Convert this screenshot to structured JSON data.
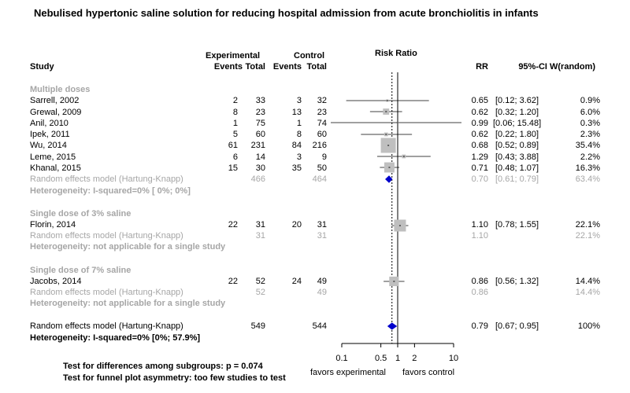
{
  "title": "Nebulised hypertonic saline solution for reducing hospital admission from acute bronchiolitis in infants",
  "headers": {
    "experimental": "Experimental",
    "control": "Control",
    "study": "Study",
    "events_e": "Events",
    "total_e": "Total",
    "events_c": "Events",
    "total_c": "Total",
    "risk_ratio": "Risk Ratio",
    "rr": "RR",
    "ci": "95%-CI",
    "weight": "W(random)"
  },
  "colors": {
    "overall_diamond": "#0000cc",
    "subgroup_diamond": "#0000cc",
    "box": "#bfbfbf",
    "muted_text": "#a6a6a6"
  },
  "chart_data": {
    "type": "forest",
    "measure": "Risk Ratio",
    "x_scale": "log",
    "xlim": [
      0.1,
      10
    ],
    "ticks": [
      {
        "value": 0.1,
        "label": "0.1"
      },
      {
        "value": 0.5,
        "label": "0.5"
      },
      {
        "value": 1,
        "label": "1"
      },
      {
        "value": 2,
        "label": "2"
      },
      {
        "value": 10,
        "label": "10"
      }
    ],
    "null_value": 1,
    "pooled_reference_value": 0.79,
    "favors_left": "favors experimental",
    "favors_right": "favors control",
    "subgroups": [
      {
        "label": "Multiple doses",
        "studies": [
          {
            "study": "Sarrell, 2002",
            "ev_e": "2",
            "n_e": "33",
            "ev_c": "3",
            "n_c": "32",
            "rr": 0.65,
            "lo": 0.12,
            "hi": 3.62,
            "rr_txt": "0.65",
            "ci_txt": "[0.12;  3.62]",
            "w_txt": "0.9%",
            "w": 0.9
          },
          {
            "study": "Grewal, 2009",
            "ev_e": "8",
            "n_e": "23",
            "ev_c": "13",
            "n_c": "23",
            "rr": 0.62,
            "lo": 0.32,
            "hi": 1.2,
            "rr_txt": "0.62",
            "ci_txt": "[0.32;  1.20]",
            "w_txt": "6.0%",
            "w": 6.0
          },
          {
            "study": "Anil, 2010",
            "ev_e": "1",
            "n_e": "75",
            "ev_c": "1",
            "n_c": "74",
            "rr": 0.99,
            "lo": 0.06,
            "hi": 15.48,
            "rr_txt": "0.99",
            "ci_txt": "[0.06; 15.48]",
            "w_txt": "0.3%",
            "w": 0.3
          },
          {
            "study": "Ipek, 2011",
            "ev_e": "5",
            "n_e": "60",
            "ev_c": "8",
            "n_c": "60",
            "rr": 0.62,
            "lo": 0.22,
            "hi": 1.8,
            "rr_txt": "0.62",
            "ci_txt": "[0.22;  1.80]",
            "w_txt": "2.3%",
            "w": 2.3
          },
          {
            "study": "Wu, 2014",
            "ev_e": "61",
            "n_e": "231",
            "ev_c": "84",
            "n_c": "216",
            "rr": 0.68,
            "lo": 0.52,
            "hi": 0.89,
            "rr_txt": "0.68",
            "ci_txt": "[0.52;  0.89]",
            "w_txt": "35.4%",
            "w": 35.4
          },
          {
            "study": "Leme, 2015",
            "ev_e": "6",
            "n_e": "14",
            "ev_c": "3",
            "n_c": "9",
            "rr": 1.29,
            "lo": 0.43,
            "hi": 3.88,
            "rr_txt": "1.29",
            "ci_txt": "[0.43;  3.88]",
            "w_txt": "2.2%",
            "w": 2.2
          },
          {
            "study": "Khanal, 2015",
            "ev_e": "15",
            "n_e": "30",
            "ev_c": "35",
            "n_c": "50",
            "rr": 0.71,
            "lo": 0.48,
            "hi": 1.07,
            "rr_txt": "0.71",
            "ci_txt": "[0.48;  1.07]",
            "w_txt": "16.3%",
            "w": 16.3
          }
        ],
        "model": {
          "label": "Random effects model  (Hartung-Knapp)",
          "n_e": "466",
          "n_c": "464",
          "rr": 0.7,
          "lo": 0.61,
          "hi": 0.79,
          "rr_txt": "0.70",
          "ci_txt": "[0.61;  0.79]",
          "w_txt": "63.4%"
        },
        "heterogeneity": "Heterogeneity: I-squared=0% [ 0%;  0%]"
      },
      {
        "label": "Single dose of 3% saline",
        "studies": [
          {
            "study": "Florin, 2014",
            "ev_e": "22",
            "n_e": "31",
            "ev_c": "20",
            "n_c": "31",
            "rr": 1.1,
            "lo": 0.78,
            "hi": 1.55,
            "rr_txt": "1.10",
            "ci_txt": "[0.78;  1.55]",
            "w_txt": "22.1%",
            "w": 22.1
          }
        ],
        "model": {
          "label": "Random effects model  (Hartung-Knapp)",
          "n_e": "31",
          "n_c": "31",
          "rr": 1.1,
          "rr_txt": "1.10",
          "ci_txt": "",
          "w_txt": "22.1%"
        },
        "heterogeneity": "Heterogeneity: not applicable for a single study"
      },
      {
        "label": "Single dose of 7% saline",
        "studies": [
          {
            "study": "Jacobs, 2014",
            "ev_e": "22",
            "n_e": "52",
            "ev_c": "24",
            "n_c": "49",
            "rr": 0.86,
            "lo": 0.56,
            "hi": 1.32,
            "rr_txt": "0.86",
            "ci_txt": "[0.56;  1.32]",
            "w_txt": "14.4%",
            "w": 14.4
          }
        ],
        "model": {
          "label": "Random effects model  (Hartung-Knapp)",
          "n_e": "52",
          "n_c": "49",
          "rr": 0.86,
          "rr_txt": "0.86",
          "ci_txt": "",
          "w_txt": "14.4%"
        },
        "heterogeneity": "Heterogeneity: not applicable for a single study"
      }
    ],
    "overall": {
      "label": "Random effects model  (Hartung-Knapp)",
      "n_e": "549",
      "n_c": "544",
      "rr": 0.79,
      "lo": 0.67,
      "hi": 0.95,
      "rr_txt": "0.79",
      "ci_txt": "[0.67;  0.95]",
      "w_txt": "100%"
    },
    "overall_heterogeneity": "Heterogeneity: I-squared=0% [0%; 57.9%]"
  },
  "footer": {
    "subgroup_test": "Test for differences among subgroups: p = 0.074",
    "funnel_test": "Test for funnel plot asymmetry: too few studies to test"
  }
}
